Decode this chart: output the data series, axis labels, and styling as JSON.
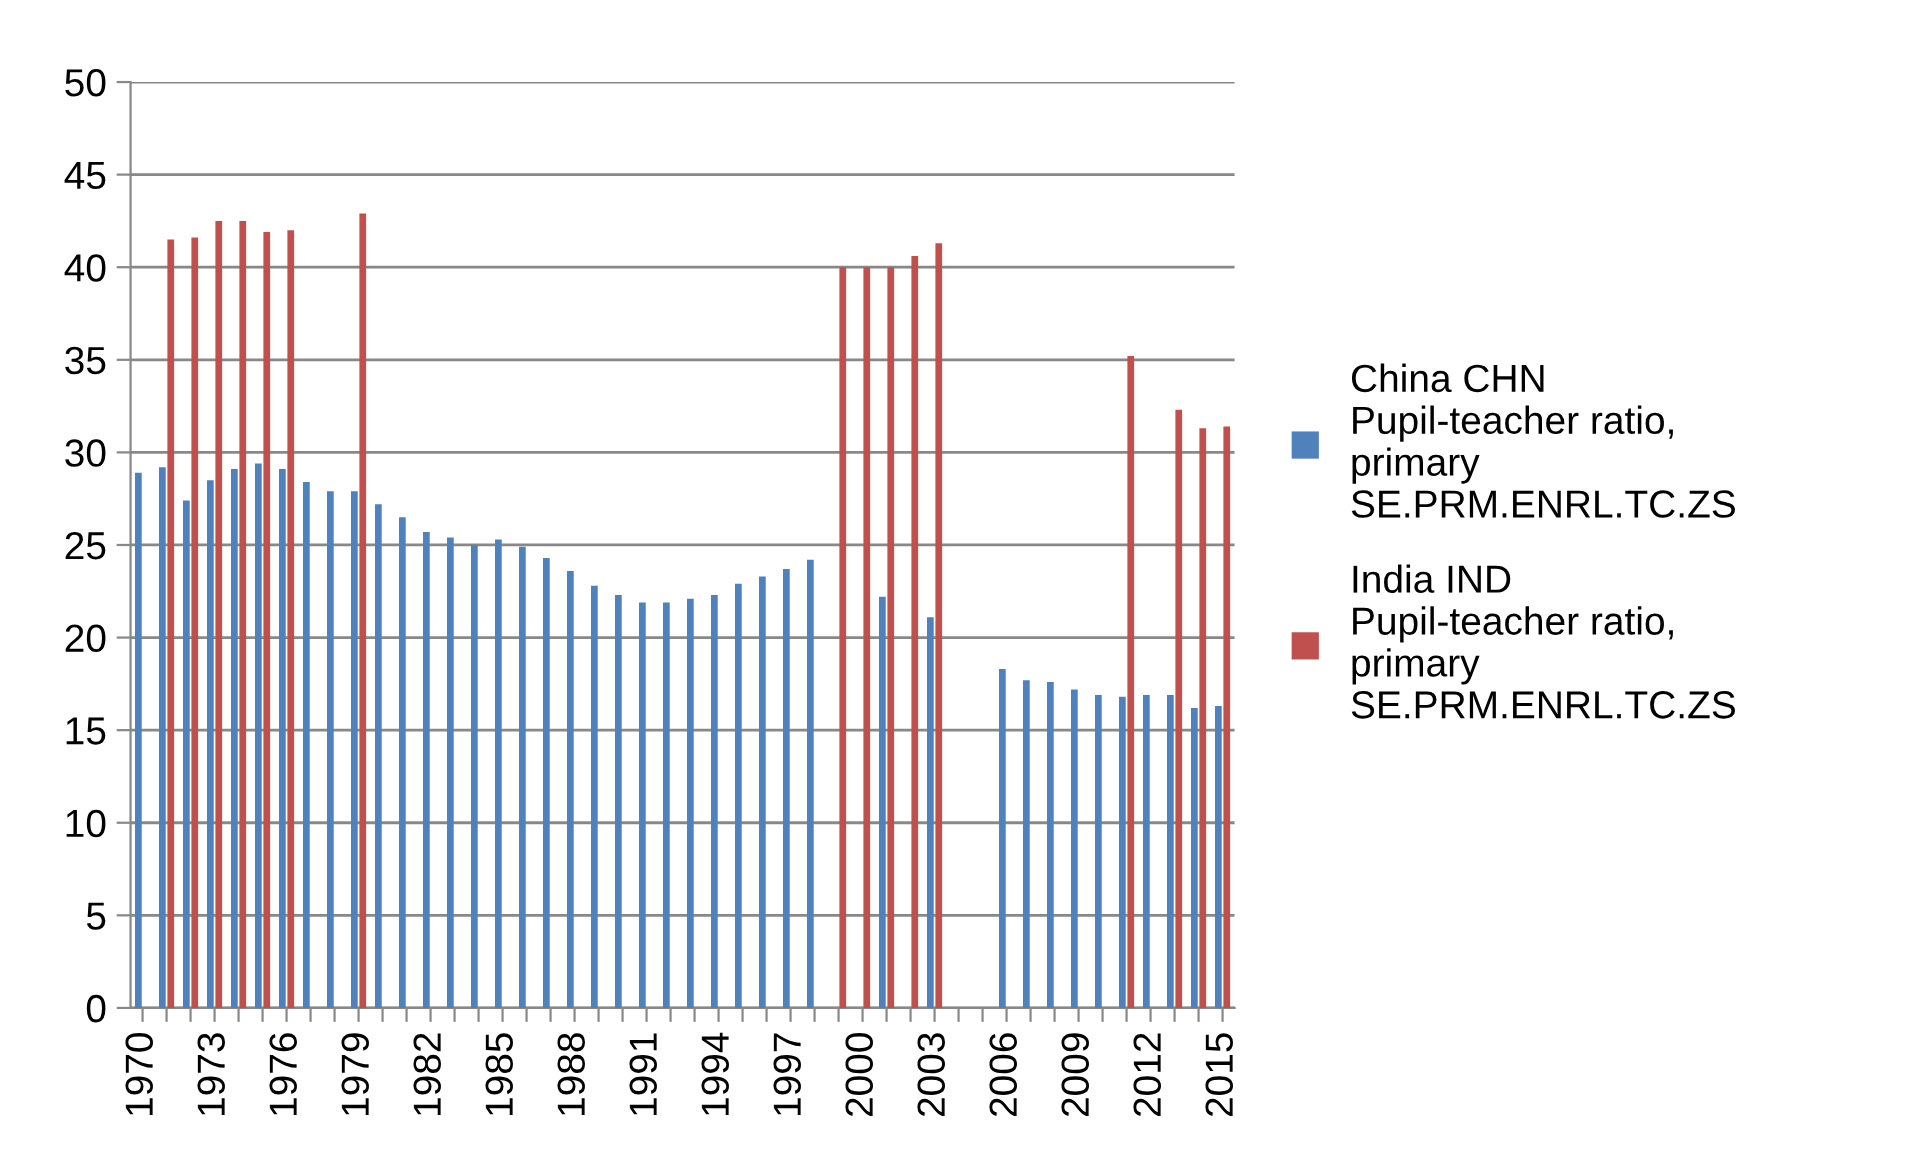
{
  "chart_data": {
    "type": "bar",
    "categories": [
      "1970",
      null,
      null,
      "1973",
      null,
      null,
      "1976",
      null,
      null,
      "1979",
      null,
      null,
      "1982",
      null,
      null,
      "1985",
      null,
      null,
      "1988",
      null,
      null,
      "1991",
      null,
      null,
      "1994",
      null,
      null,
      "1997",
      null,
      null,
      "2000",
      null,
      null,
      "2003",
      null,
      null,
      "2006",
      null,
      null,
      "2009",
      null,
      null,
      "2012",
      null,
      null,
      "2015"
    ],
    "series": [
      {
        "name": "China CHN Pupil-teacher ratio, primary SE.PRM.ENRL.TC.ZS",
        "color": "#4f81bd",
        "values": [
          28.9,
          29.2,
          27.4,
          28.5,
          29.1,
          29.4,
          29.1,
          28.4,
          27.9,
          27.9,
          27.2,
          26.5,
          25.7,
          25.4,
          25.0,
          25.3,
          24.9,
          24.3,
          23.6,
          22.8,
          22.3,
          21.9,
          21.9,
          22.1,
          22.3,
          22.9,
          23.3,
          23.7,
          24.2,
          null,
          null,
          22.2,
          null,
          21.1,
          null,
          null,
          18.3,
          17.7,
          17.6,
          17.2,
          16.9,
          16.8,
          16.9,
          16.9,
          16.2,
          16.3
        ]
      },
      {
        "name": "India IND Pupil-teacher ratio, primary SE.PRM.ENRL.TC.ZS",
        "color": "#c0504d",
        "values": [
          null,
          41.5,
          41.6,
          42.5,
          42.5,
          41.9,
          42.0,
          null,
          null,
          42.9,
          null,
          null,
          null,
          null,
          null,
          null,
          null,
          null,
          null,
          null,
          null,
          null,
          null,
          null,
          null,
          null,
          null,
          null,
          null,
          40.0,
          40.0,
          40.0,
          40.6,
          41.3,
          null,
          null,
          null,
          null,
          null,
          null,
          null,
          35.2,
          null,
          32.3,
          31.3,
          31.4
        ]
      }
    ],
    "ylim": [
      0,
      50
    ],
    "yticks": [
      0,
      5,
      10,
      15,
      20,
      25,
      30,
      35,
      40,
      45,
      50
    ],
    "grid": "y",
    "legend": "right"
  }
}
